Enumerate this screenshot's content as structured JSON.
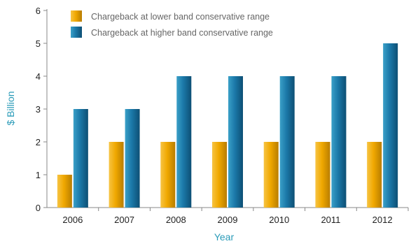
{
  "chart_data": {
    "type": "bar",
    "categories": [
      "2006",
      "2007",
      "2008",
      "2009",
      "2010",
      "2011",
      "2012"
    ],
    "series": [
      {
        "name": "Chargeback at lower band conservative range",
        "values": [
          1,
          2,
          2,
          2,
          2,
          2,
          2
        ],
        "color": "#f0a800"
      },
      {
        "name": "Chargeback at higher band conservative range",
        "values": [
          3,
          3,
          4,
          4,
          4,
          4,
          5
        ],
        "color": "#1b78a8"
      }
    ],
    "xlabel": "Year",
    "ylabel": "$ Billion",
    "ylim": [
      0,
      6
    ],
    "yticks": [
      "0",
      "1",
      "2",
      "3",
      "4",
      "5",
      "6"
    ],
    "grid": false,
    "legend_position": "top-left"
  }
}
